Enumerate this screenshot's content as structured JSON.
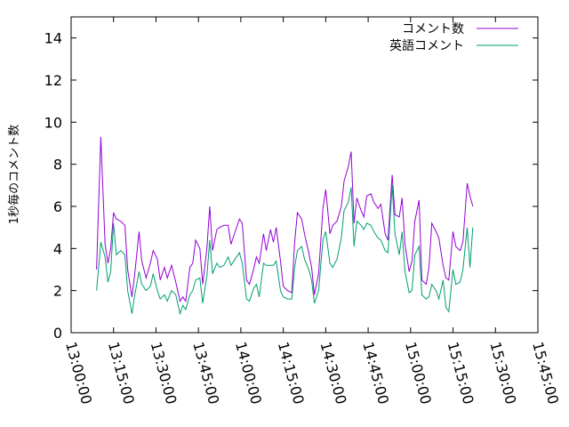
{
  "chart_data": {
    "type": "line",
    "title": "",
    "xlabel": "",
    "ylabel": "1秒毎のコメント数",
    "ylim": [
      0,
      15
    ],
    "yticks": [
      0,
      2,
      4,
      6,
      8,
      10,
      12,
      14
    ],
    "xlim": [
      "13:00:00",
      "15:45:00"
    ],
    "xticks": [
      "13:00:00",
      "13:15:00",
      "13:30:00",
      "13:45:00",
      "14:00:00",
      "14:15:00",
      "14:30:00",
      "14:45:00",
      "15:00:00",
      "15:15:00",
      "15:30:00",
      "15:45:00"
    ],
    "grid": false,
    "legend": "top-right",
    "series": [
      {
        "name": "コメント数",
        "color": "#9400d3",
        "points": [
          [
            "13:09:00",
            3.0
          ],
          [
            "13:10:30",
            9.3
          ],
          [
            "13:12:00",
            4.2
          ],
          [
            "13:13:00",
            3.3
          ],
          [
            "13:14:00",
            4.0
          ],
          [
            "13:15:00",
            5.7
          ],
          [
            "13:16:00",
            5.4
          ],
          [
            "13:17:30",
            5.3
          ],
          [
            "13:19:00",
            5.1
          ],
          [
            "13:20:00",
            3.0
          ],
          [
            "13:21:30",
            1.7
          ],
          [
            "13:22:30",
            2.8
          ],
          [
            "13:24:00",
            4.8
          ],
          [
            "13:25:00",
            3.4
          ],
          [
            "13:26:30",
            2.6
          ],
          [
            "13:28:00",
            3.3
          ],
          [
            "13:29:00",
            3.9
          ],
          [
            "13:30:30",
            3.5
          ],
          [
            "13:31:30",
            2.5
          ],
          [
            "13:33:00",
            3.1
          ],
          [
            "13:34:00",
            2.6
          ],
          [
            "13:35:30",
            3.2
          ],
          [
            "13:37:00",
            2.4
          ],
          [
            "13:38:30",
            1.5
          ],
          [
            "13:39:30",
            1.7
          ],
          [
            "13:40:30",
            1.5
          ],
          [
            "13:42:00",
            3.1
          ],
          [
            "13:43:00",
            3.3
          ],
          [
            "13:44:00",
            4.4
          ],
          [
            "13:45:30",
            4.0
          ],
          [
            "13:46:30",
            2.3
          ],
          [
            "13:48:00",
            4.0
          ],
          [
            "13:49:00",
            6.0
          ],
          [
            "13:50:00",
            3.9
          ],
          [
            "13:51:30",
            4.9
          ],
          [
            "13:52:30",
            5.0
          ],
          [
            "13:54:00",
            5.1
          ],
          [
            "13:55:30",
            5.1
          ],
          [
            "13:56:30",
            4.2
          ],
          [
            "13:58:00",
            4.8
          ],
          [
            "13:59:30",
            5.4
          ],
          [
            "14:00:30",
            5.2
          ],
          [
            "14:02:00",
            2.5
          ],
          [
            "14:03:00",
            2.3
          ],
          [
            "14:04:30",
            3.0
          ],
          [
            "14:05:30",
            3.6
          ],
          [
            "14:06:30",
            3.3
          ],
          [
            "14:08:00",
            4.7
          ],
          [
            "14:09:00",
            3.9
          ],
          [
            "14:10:30",
            4.9
          ],
          [
            "14:11:30",
            4.3
          ],
          [
            "14:12:30",
            5.0
          ],
          [
            "14:14:00",
            3.4
          ],
          [
            "14:15:00",
            2.2
          ],
          [
            "14:16:30",
            2.0
          ],
          [
            "14:18:00",
            1.9
          ],
          [
            "14:19:00",
            4.3
          ],
          [
            "14:20:00",
            5.7
          ],
          [
            "14:21:30",
            5.4
          ],
          [
            "14:22:30",
            4.7
          ],
          [
            "14:24:00",
            3.8
          ],
          [
            "14:25:00",
            3.1
          ],
          [
            "14:26:00",
            1.8
          ],
          [
            "14:27:30",
            2.8
          ],
          [
            "14:29:00",
            5.9
          ],
          [
            "14:30:00",
            6.8
          ],
          [
            "14:31:30",
            4.7
          ],
          [
            "14:32:30",
            5.1
          ],
          [
            "14:34:00",
            5.3
          ],
          [
            "14:35:30",
            6.0
          ],
          [
            "14:36:30",
            7.2
          ],
          [
            "14:38:00",
            7.9
          ],
          [
            "14:39:00",
            8.6
          ],
          [
            "14:40:00",
            5.2
          ],
          [
            "14:41:00",
            6.4
          ],
          [
            "14:42:30",
            5.8
          ],
          [
            "14:43:30",
            5.5
          ],
          [
            "14:44:30",
            6.5
          ],
          [
            "14:46:00",
            6.6
          ],
          [
            "14:47:00",
            6.2
          ],
          [
            "14:48:30",
            5.9
          ],
          [
            "14:49:30",
            6.1
          ],
          [
            "14:51:00",
            4.7
          ],
          [
            "14:52:00",
            4.4
          ],
          [
            "14:53:30",
            7.5
          ],
          [
            "14:54:30",
            5.6
          ],
          [
            "14:56:00",
            5.5
          ],
          [
            "14:57:00",
            6.4
          ],
          [
            "14:58:00",
            4.2
          ],
          [
            "14:59:30",
            2.9
          ],
          [
            "15:00:30",
            3.4
          ],
          [
            "15:01:30",
            5.3
          ],
          [
            "15:03:00",
            6.3
          ],
          [
            "15:04:00",
            2.5
          ],
          [
            "15:05:30",
            2.3
          ],
          [
            "15:06:30",
            3.1
          ],
          [
            "15:07:30",
            5.2
          ],
          [
            "15:09:00",
            4.8
          ],
          [
            "15:10:00",
            4.5
          ],
          [
            "15:11:30",
            3.2
          ],
          [
            "15:12:30",
            2.6
          ],
          [
            "15:13:30",
            2.5
          ],
          [
            "15:15:00",
            4.8
          ],
          [
            "15:16:00",
            4.1
          ],
          [
            "15:17:30",
            3.9
          ],
          [
            "15:18:30",
            4.3
          ],
          [
            "15:20:00",
            7.1
          ],
          [
            "15:21:00",
            6.5
          ],
          [
            "15:22:00",
            6.0
          ]
        ]
      },
      {
        "name": "英語コメント",
        "color": "#009e73",
        "points": [
          [
            "13:09:00",
            2.0
          ],
          [
            "13:10:30",
            4.3
          ],
          [
            "13:12:00",
            3.6
          ],
          [
            "13:13:00",
            2.4
          ],
          [
            "13:14:00",
            2.9
          ],
          [
            "13:15:00",
            5.2
          ],
          [
            "13:16:00",
            3.7
          ],
          [
            "13:17:30",
            3.9
          ],
          [
            "13:19:00",
            3.7
          ],
          [
            "13:20:00",
            2.0
          ],
          [
            "13:21:30",
            0.9
          ],
          [
            "13:22:30",
            1.8
          ],
          [
            "13:24:00",
            2.9
          ],
          [
            "13:25:00",
            2.3
          ],
          [
            "13:26:30",
            2.0
          ],
          [
            "13:28:00",
            2.2
          ],
          [
            "13:29:00",
            2.8
          ],
          [
            "13:30:30",
            2.0
          ],
          [
            "13:31:30",
            1.6
          ],
          [
            "13:33:00",
            1.8
          ],
          [
            "13:34:00",
            1.5
          ],
          [
            "13:35:30",
            2.0
          ],
          [
            "13:37:00",
            1.8
          ],
          [
            "13:38:30",
            0.9
          ],
          [
            "13:39:30",
            1.3
          ],
          [
            "13:40:30",
            1.1
          ],
          [
            "13:42:00",
            1.8
          ],
          [
            "13:43:00",
            2.0
          ],
          [
            "13:44:00",
            2.5
          ],
          [
            "13:45:30",
            2.6
          ],
          [
            "13:46:30",
            1.4
          ],
          [
            "13:48:00",
            2.7
          ],
          [
            "13:49:00",
            4.4
          ],
          [
            "13:50:00",
            2.8
          ],
          [
            "13:51:30",
            3.3
          ],
          [
            "13:52:30",
            3.1
          ],
          [
            "13:54:00",
            3.2
          ],
          [
            "13:55:30",
            3.6
          ],
          [
            "13:56:30",
            3.2
          ],
          [
            "13:58:00",
            3.5
          ],
          [
            "13:59:30",
            3.8
          ],
          [
            "14:00:30",
            3.3
          ],
          [
            "14:02:00",
            1.6
          ],
          [
            "14:03:00",
            1.5
          ],
          [
            "14:04:30",
            2.1
          ],
          [
            "14:05:30",
            2.3
          ],
          [
            "14:06:30",
            1.7
          ],
          [
            "14:08:00",
            3.3
          ],
          [
            "14:09:00",
            3.2
          ],
          [
            "14:10:30",
            3.2
          ],
          [
            "14:11:30",
            3.2
          ],
          [
            "14:12:30",
            3.4
          ],
          [
            "14:14:00",
            2.0
          ],
          [
            "14:15:00",
            1.7
          ],
          [
            "14:16:30",
            1.6
          ],
          [
            "14:18:00",
            1.6
          ],
          [
            "14:19:00",
            3.1
          ],
          [
            "14:20:00",
            3.9
          ],
          [
            "14:21:30",
            4.1
          ],
          [
            "14:22:30",
            3.5
          ],
          [
            "14:24:00",
            3.0
          ],
          [
            "14:25:00",
            2.5
          ],
          [
            "14:26:00",
            1.4
          ],
          [
            "14:27:30",
            2.0
          ],
          [
            "14:29:00",
            4.4
          ],
          [
            "14:30:00",
            4.8
          ],
          [
            "14:31:30",
            3.3
          ],
          [
            "14:32:30",
            3.1
          ],
          [
            "14:34:00",
            3.5
          ],
          [
            "14:35:30",
            4.5
          ],
          [
            "14:36:30",
            5.8
          ],
          [
            "14:38:00",
            6.2
          ],
          [
            "14:39:00",
            6.9
          ],
          [
            "14:40:00",
            4.1
          ],
          [
            "14:41:00",
            5.3
          ],
          [
            "14:42:30",
            5.1
          ],
          [
            "14:43:30",
            4.9
          ],
          [
            "14:44:30",
            5.2
          ],
          [
            "14:46:00",
            5.1
          ],
          [
            "14:47:00",
            4.8
          ],
          [
            "14:48:30",
            4.5
          ],
          [
            "14:49:30",
            4.4
          ],
          [
            "14:51:00",
            3.9
          ],
          [
            "14:52:00",
            3.8
          ],
          [
            "14:53:30",
            7.0
          ],
          [
            "14:54:30",
            4.7
          ],
          [
            "14:56:00",
            3.7
          ],
          [
            "14:57:00",
            4.8
          ],
          [
            "14:58:00",
            2.9
          ],
          [
            "14:59:30",
            1.9
          ],
          [
            "15:00:30",
            2.0
          ],
          [
            "15:01:30",
            3.7
          ],
          [
            "15:03:00",
            4.1
          ],
          [
            "15:04:00",
            1.8
          ],
          [
            "15:05:30",
            1.6
          ],
          [
            "15:06:30",
            1.7
          ],
          [
            "15:07:30",
            2.3
          ],
          [
            "15:09:00",
            2.0
          ],
          [
            "15:10:00",
            1.6
          ],
          [
            "15:11:30",
            2.5
          ],
          [
            "15:12:30",
            1.2
          ],
          [
            "15:13:30",
            1.0
          ],
          [
            "15:15:00",
            3.0
          ],
          [
            "15:16:00",
            2.3
          ],
          [
            "15:17:30",
            2.4
          ],
          [
            "15:18:30",
            3.0
          ],
          [
            "15:20:00",
            5.0
          ],
          [
            "15:21:00",
            3.1
          ],
          [
            "15:22:00",
            5.0
          ]
        ]
      }
    ]
  }
}
